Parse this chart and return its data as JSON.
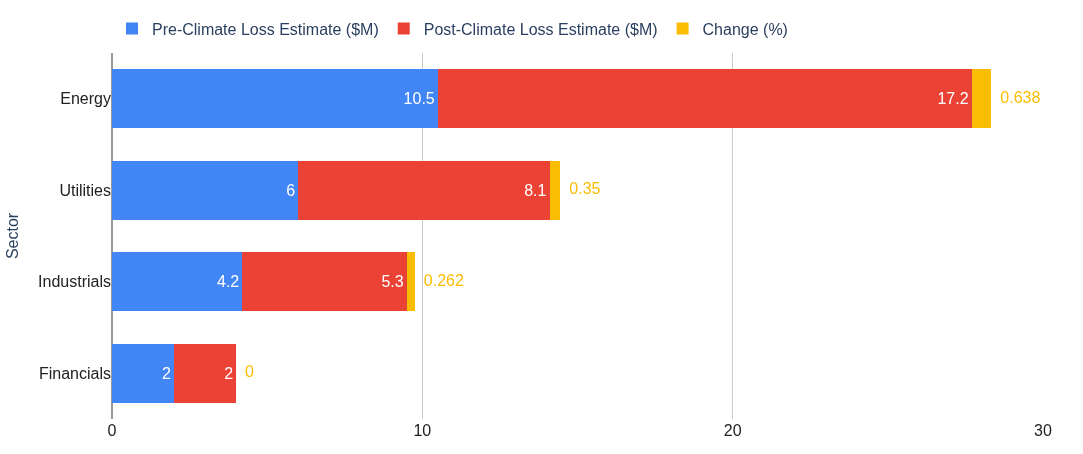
{
  "chart_data": {
    "type": "bar",
    "orientation": "horizontal",
    "stacked": true,
    "ylabel": "Sector",
    "categories": [
      "Energy",
      "Utilities",
      "Industrials",
      "Financials"
    ],
    "series": [
      {
        "name": "Pre-Climate Loss Estimate ($M)",
        "color": "#4285f4",
        "values": [
          10.5,
          6,
          4.2,
          2
        ]
      },
      {
        "name": "Post-Climate Loss Estimate ($M)",
        "color": "#ea4335",
        "values": [
          17.2,
          8.1,
          5.3,
          2
        ]
      },
      {
        "name": "Change (%)",
        "color": "#fbbc04",
        "values": [
          0.638,
          0.35,
          0.262,
          0
        ]
      }
    ],
    "xlim": [
      0,
      30
    ],
    "xticks": [
      0,
      10,
      20,
      30
    ],
    "grid": "x",
    "legend": "top",
    "data_labels": true
  }
}
